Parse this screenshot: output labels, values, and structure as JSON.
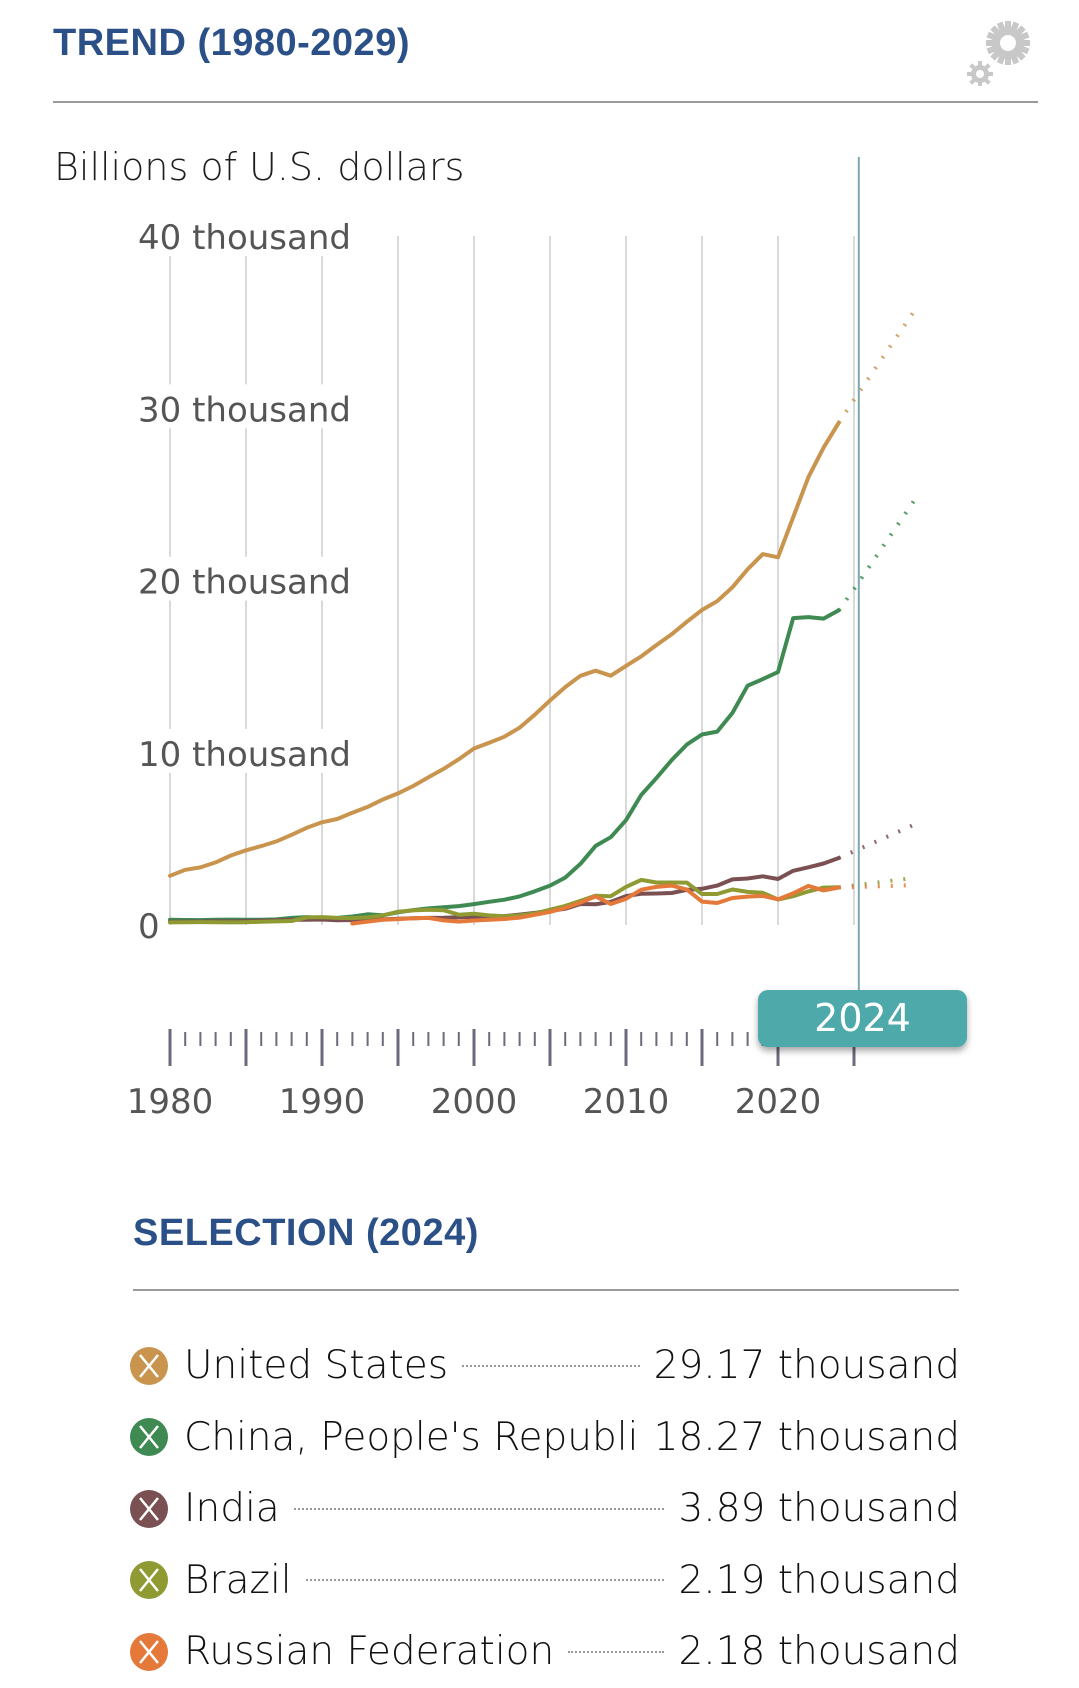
{
  "header": {
    "title": "TREND (1980-2029)",
    "settings_icon": "gear-icon"
  },
  "selection": {
    "title": "SELECTION (2024)",
    "year": "2024"
  },
  "colors": {
    "title_blue": "#2b5087",
    "badge_teal": "#4ea9aa",
    "cursor_line": "#7aa9b0"
  },
  "chart_data": {
    "type": "line",
    "title": "TREND (1980-2029)",
    "ylabel": "Billions of U.S. dollars",
    "xlabel": "",
    "ylim": [
      0,
      40000
    ],
    "xlim": [
      1980,
      2029
    ],
    "y_ticks": [
      {
        "value": 0,
        "label": "0"
      },
      {
        "value": 10000,
        "label": "10 thousand"
      },
      {
        "value": 20000,
        "label": "20 thousand"
      },
      {
        "value": 30000,
        "label": "30 thousand"
      },
      {
        "value": 40000,
        "label": "40 thousand"
      }
    ],
    "x_ticks": [
      {
        "value": 1980,
        "label": "1980"
      },
      {
        "value": 1990,
        "label": "1990"
      },
      {
        "value": 2000,
        "label": "2000"
      },
      {
        "value": 2010,
        "label": "2010"
      },
      {
        "value": 2020,
        "label": "2020"
      }
    ],
    "grid": "vertical",
    "selected_year": 2024,
    "forecast_start": 2024,
    "series": [
      {
        "name": "United States",
        "color": "#c9944e",
        "value_label": "29.17 thousand",
        "start": 1980,
        "values": [
          2857,
          3207,
          3343,
          3634,
          4037,
          4339,
          4580,
          4855,
          5236,
          5642,
          5963,
          6158,
          6520,
          6859,
          7287,
          7640,
          8073,
          8578,
          9063,
          9631,
          10251,
          10582,
          10936,
          11458,
          12214,
          13037,
          13815,
          14474,
          14770,
          14478,
          15049,
          15600,
          16254,
          16880,
          17608,
          18295,
          18805,
          19612,
          20657,
          21540,
          21354,
          23681,
          26007,
          27721,
          29168
        ],
        "forecast": [
          29168,
          30500,
          31800,
          33100,
          34400,
          35700
        ]
      },
      {
        "name": "China, People's Republi",
        "color": "#3e8a52",
        "value_label": "18.27 thousand",
        "start": 1980,
        "values": [
          305,
          290,
          285,
          306,
          315,
          310,
          300,
          327,
          410,
          457,
          394,
          415,
          495,
          623,
          564,
          737,
          867,
          965,
          1032,
          1099,
          1211,
          1349,
          1471,
          1660,
          1956,
          2286,
          2752,
          3550,
          4594,
          5101,
          6087,
          7552,
          8532,
          9570,
          10476,
          11062,
          11233,
          12310,
          13895,
          14280,
          14688,
          17820,
          17882,
          17795,
          18273
        ],
        "forecast": [
          18273,
          19500,
          20800,
          22100,
          23400,
          24700
        ]
      },
      {
        "name": "India",
        "color": "#7a5052",
        "value_label": "3.89 thousand",
        "start": 1980,
        "values": [
          190,
          200,
          205,
          215,
          210,
          235,
          250,
          280,
          300,
          300,
          320,
          275,
          290,
          285,
          325,
          365,
          390,
          415,
          420,
          455,
          470,
          485,
          515,
          605,
          710,
          820,
          940,
          1220,
          1200,
          1340,
          1680,
          1820,
          1830,
          1860,
          2040,
          2100,
          2290,
          2650,
          2700,
          2830,
          2670,
          3150,
          3350,
          3570,
          3890
        ],
        "forecast": [
          3890,
          4280,
          4670,
          5060,
          5450,
          5840
        ]
      },
      {
        "name": "Brazil",
        "color": "#8f9a33",
        "value_label": "2.19 thousand",
        "start": 1980,
        "values": [
          150,
          160,
          170,
          165,
          150,
          160,
          190,
          210,
          230,
          440,
          460,
          410,
          400,
          440,
          560,
          770,
          850,
          880,
          860,
          600,
          650,
          560,
          510,
          560,
          670,
          890,
          1110,
          1400,
          1700,
          1670,
          2210,
          2620,
          2470,
          2470,
          2460,
          1800,
          1800,
          2060,
          1920,
          1870,
          1480,
          1670,
          1950,
          2170,
          2190
        ],
        "forecast": [
          2190,
          2300,
          2410,
          2520,
          2630,
          2740
        ]
      },
      {
        "name": "Russian Federation",
        "color": "#e5793a",
        "value_label": "2.18 thousand",
        "start": 1992,
        "values": [
          90,
          190,
          300,
          340,
          390,
          410,
          270,
          200,
          260,
          310,
          350,
          430,
          590,
          760,
          990,
          1300,
          1660,
          1220,
          1520,
          2050,
          2210,
          2290,
          2060,
          1360,
          1280,
          1570,
          1650,
          1690,
          1490,
          1840,
          2270,
          2010,
          2180
        ],
        "forecast": [
          2180,
          2200,
          2230,
          2260,
          2290,
          2320
        ]
      }
    ]
  }
}
